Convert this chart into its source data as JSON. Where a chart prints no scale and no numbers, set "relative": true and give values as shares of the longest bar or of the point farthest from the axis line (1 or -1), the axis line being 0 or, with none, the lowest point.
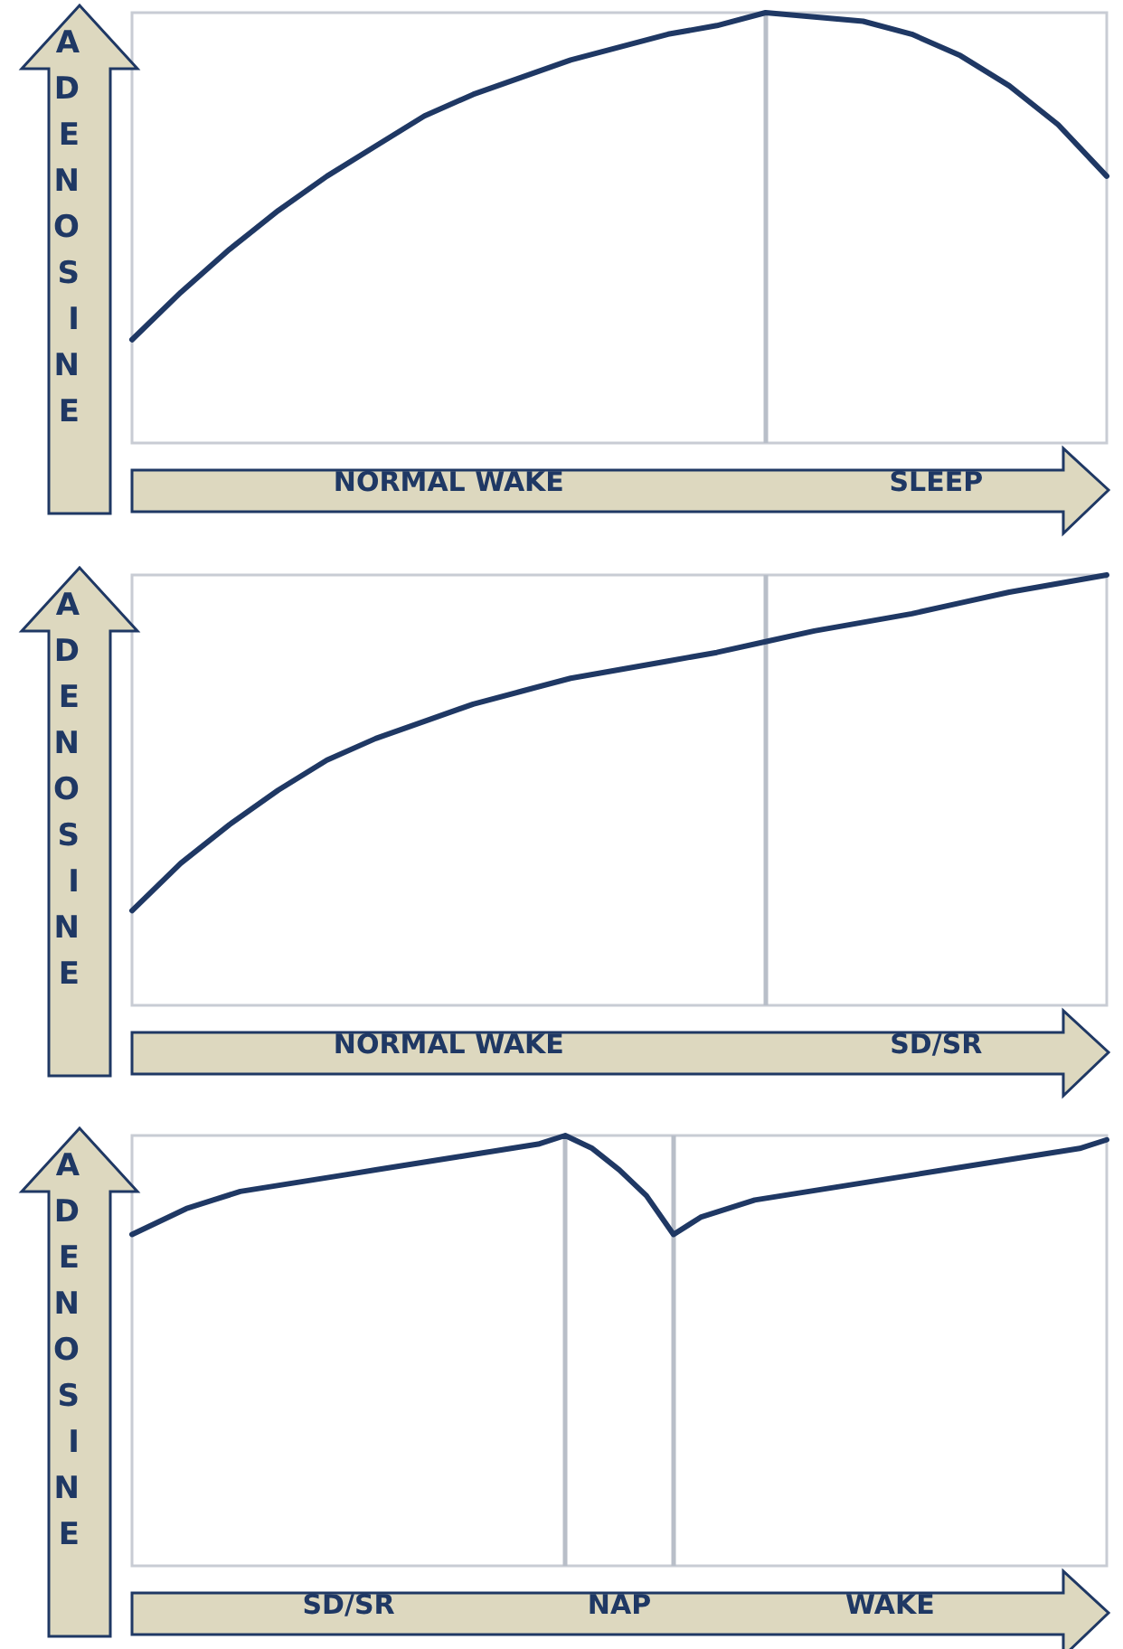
{
  "chart_data": [
    {
      "type": "line",
      "relative": true,
      "ylabel": "ADENOSINE",
      "marker": "none",
      "annotations": [
        "NORMAL WAKE",
        "SLEEP"
      ],
      "categories": [
        null,
        null,
        null,
        null,
        null,
        null,
        null,
        null,
        null,
        null,
        null,
        null,
        null,
        null,
        null,
        null,
        null,
        null,
        null,
        null,
        null
      ],
      "series": [
        {
          "color": "#1f3864",
          "values": [
            0.24,
            0.35,
            0.45,
            0.54,
            0.62,
            0.69,
            0.76,
            0.81,
            0.85,
            0.89,
            0.92,
            0.95,
            0.97,
            1,
            0.99,
            0.98,
            0.95,
            0.9,
            0.83,
            0.74,
            0.62
          ]
        }
      ]
    },
    {
      "type": "line",
      "relative": true,
      "ylabel": "ADENOSINE",
      "marker": "none",
      "annotations": [
        "NORMAL WAKE",
        "SD/SR"
      ],
      "categories": [
        null,
        null,
        null,
        null,
        null,
        null,
        null,
        null,
        null,
        null,
        null,
        null,
        null,
        null,
        null,
        null,
        null,
        null,
        null,
        null,
        null
      ],
      "series": [
        {
          "color": "#1f3864",
          "values": [
            0.22,
            0.33,
            0.42,
            0.5,
            0.57,
            0.62,
            0.66,
            0.7,
            0.73,
            0.76,
            0.78,
            0.8,
            0.82,
            0.845,
            0.87,
            0.89,
            0.91,
            0.935,
            0.96,
            0.98,
            1
          ]
        }
      ]
    },
    {
      "type": "line",
      "relative": true,
      "ylabel": "ADENOSINE",
      "marker": "none",
      "annotations": [
        "SD/SR",
        "NAP",
        "WAKE"
      ],
      "categories": [
        null,
        null,
        null,
        null,
        null,
        null,
        null,
        null,
        null,
        null,
        null,
        null,
        null,
        null,
        null,
        null,
        null,
        null,
        null,
        null,
        null,
        null,
        null,
        null,
        null,
        null,
        null,
        null,
        null,
        null,
        null,
        null,
        null,
        null,
        null,
        null,
        null
      ],
      "series": [
        {
          "color": "#1f3864",
          "values": [
            0.77,
            0.8,
            0.83,
            0.85,
            0.87,
            0.88,
            0.89,
            0.9,
            0.91,
            0.92,
            0.93,
            0.94,
            0.95,
            0.96,
            0.97,
            0.98,
            1,
            0.97,
            0.92,
            0.86,
            0.77,
            0.81,
            0.83,
            0.85,
            0.86,
            0.87,
            0.88,
            0.89,
            0.9,
            0.91,
            0.92,
            0.93,
            0.94,
            0.95,
            0.96,
            0.97,
            0.99
          ]
        }
      ]
    }
  ]
}
